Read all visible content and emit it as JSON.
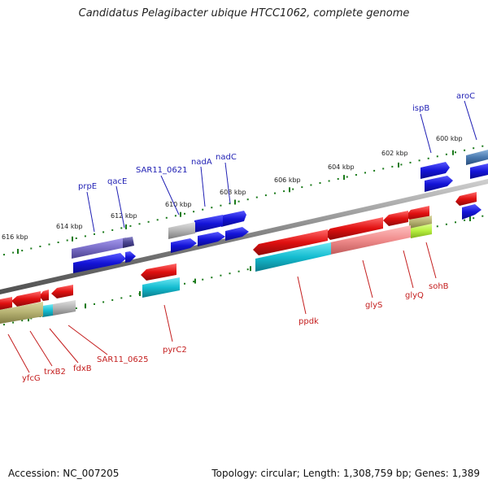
{
  "title": "Candidatus Pelagibacter ubique HTCC1062, complete genome",
  "footer": {
    "accession": "Accession: NC_007205",
    "summary": "Topology: circular; Length: 1,308,759 bp; Genes: 1,389"
  },
  "colors": {
    "backbone": "#808080",
    "tick": "#1a7a1a",
    "gene_blue": "#1414d8",
    "gene_red": "#e01010",
    "gene_purple": "#7a6ec8",
    "gene_gray": "#b4b4b4",
    "gene_cyan": "#14bcd0",
    "gene_olive": "#b4b070",
    "gene_pink": "#f08c8c",
    "gene_lime": "#b8f040",
    "gene_steel": "#4a7ab0",
    "label_blue": "#1f1fb4",
    "label_red": "#c41e1e"
  },
  "kbp_labels": [
    "600 kbp",
    "602 kbp",
    "604 kbp",
    "606 kbp",
    "608 kbp",
    "610 kbp",
    "612 kbp",
    "614 kbp",
    "616 kbp"
  ],
  "forward_gene_labels": [
    "aroC",
    "ispB",
    "nadC",
    "nadA",
    "SAR11_0621",
    "qacE",
    "prpE"
  ],
  "reverse_gene_labels": [
    "sohB",
    "glyQ",
    "glyS",
    "ppdk",
    "pyrC2",
    "SAR11_0625",
    "fdxB",
    "trxB2",
    "yfcG"
  ]
}
